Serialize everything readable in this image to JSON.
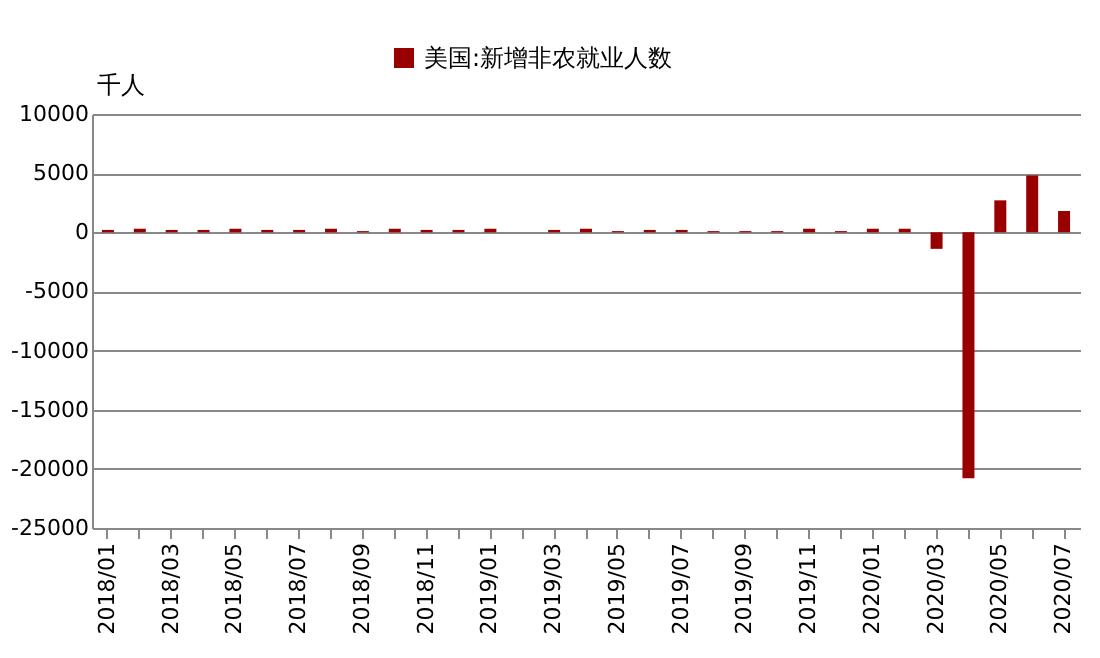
{
  "chart_data": {
    "type": "bar",
    "ylabel": "千人",
    "categories": [
      "2018/01",
      null,
      "2018/03",
      null,
      "2018/05",
      null,
      "2018/07",
      null,
      "2018/09",
      null,
      "2018/11",
      null,
      "2019/01",
      null,
      "2019/03",
      null,
      "2019/05",
      null,
      "2019/07",
      null,
      "2019/09",
      null,
      "2019/11",
      null,
      "2020/01",
      null,
      "2020/03",
      null,
      "2020/05",
      null,
      "2020/07"
    ],
    "series": [
      {
        "name": "美国:新增非农就业人数",
        "color": "#990000",
        "values": [
          200,
          300,
          200,
          200,
          300,
          200,
          200,
          300,
          100,
          300,
          200,
          200,
          300,
          0,
          200,
          300,
          100,
          200,
          200,
          100,
          100,
          100,
          300,
          100,
          300,
          300,
          -1400,
          -20800,
          2700,
          4800,
          1800
        ]
      }
    ],
    "ylim": [
      -25000,
      10000
    ],
    "yticks": [
      -25000,
      -20000,
      -15000,
      -10000,
      -5000,
      0,
      5000,
      10000
    ],
    "grid": "y",
    "legend": "top"
  }
}
